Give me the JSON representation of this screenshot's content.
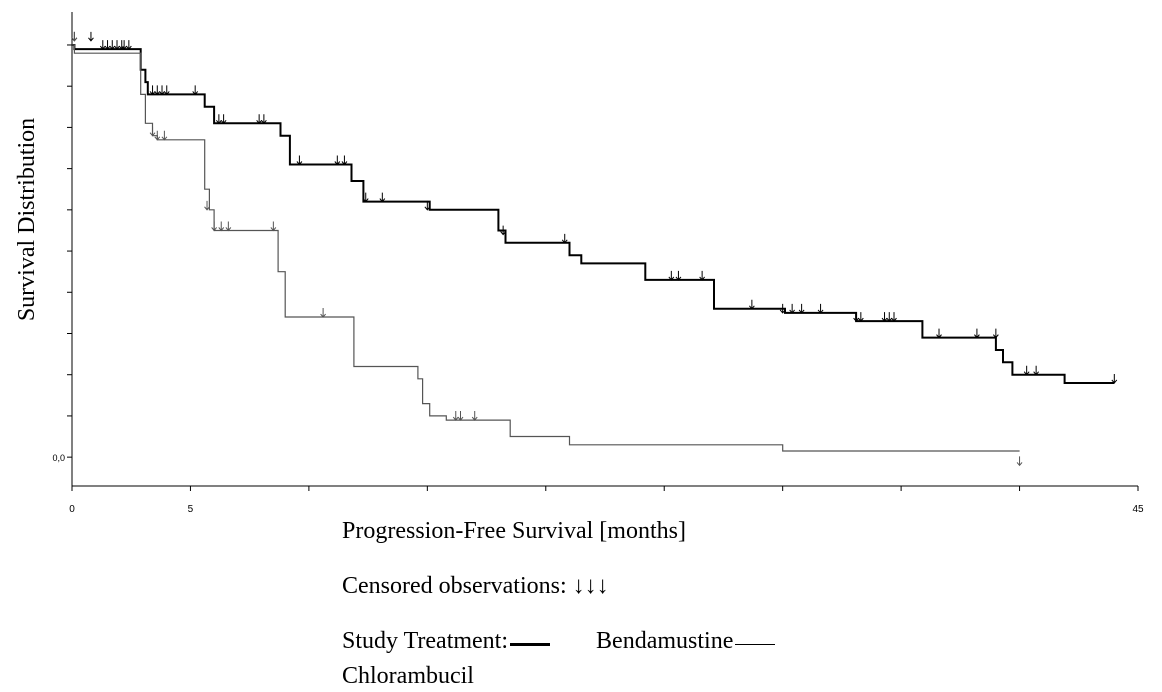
{
  "chart_data": {
    "type": "line",
    "subtype": "kaplan-meier step",
    "ylabel": "Survival Distribution",
    "xlabel": "Progression-Free Survival [months]",
    "xlim": [
      0,
      45
    ],
    "ylim": [
      -0.07,
      1.08
    ],
    "xticks": [
      0,
      5,
      10,
      15,
      20,
      25,
      30,
      35,
      40,
      45
    ],
    "xtick_labels": [
      "0",
      "5",
      "",
      "",
      "",
      "",
      "",
      "",
      "",
      "45"
    ],
    "yticks": [
      1.0,
      0.9,
      0.8,
      0.7,
      0.6,
      0.5,
      0.4,
      0.3,
      0.2,
      0.1,
      0.0
    ],
    "ytick_labels": [
      "",
      "",
      "",
      "",
      "",
      "",
      "",
      "",
      "",
      "",
      "0,0"
    ],
    "grid": false,
    "series": [
      {
        "name": "Bendamustine",
        "color": "#000000",
        "points": [
          [
            0,
            1.0
          ],
          [
            0.1,
            0.99
          ],
          [
            2.8,
            0.99
          ],
          [
            2.9,
            0.94
          ],
          [
            3.1,
            0.91
          ],
          [
            3.2,
            0.88
          ],
          [
            5.5,
            0.88
          ],
          [
            5.6,
            0.85
          ],
          [
            6.0,
            0.81
          ],
          [
            8.7,
            0.81
          ],
          [
            8.8,
            0.78
          ],
          [
            9.2,
            0.71
          ],
          [
            11.7,
            0.71
          ],
          [
            11.8,
            0.67
          ],
          [
            12.3,
            0.62
          ],
          [
            15.0,
            0.62
          ],
          [
            15.1,
            0.6
          ],
          [
            17.9,
            0.6
          ],
          [
            18.0,
            0.55
          ],
          [
            18.3,
            0.52
          ],
          [
            20.8,
            0.52
          ],
          [
            21.0,
            0.49
          ],
          [
            21.5,
            0.47
          ],
          [
            24.0,
            0.47
          ],
          [
            24.2,
            0.43
          ],
          [
            27.0,
            0.43
          ],
          [
            27.1,
            0.36
          ],
          [
            30.0,
            0.36
          ],
          [
            30.1,
            0.35
          ],
          [
            33.0,
            0.35
          ],
          [
            33.1,
            0.33
          ],
          [
            35.8,
            0.33
          ],
          [
            35.9,
            0.29
          ],
          [
            38.8,
            0.29
          ],
          [
            39.0,
            0.26
          ],
          [
            39.3,
            0.23
          ],
          [
            39.7,
            0.2
          ],
          [
            41.8,
            0.2
          ],
          [
            41.9,
            0.18
          ],
          [
            44.0,
            0.18
          ]
        ],
        "censored": [
          [
            0.1,
            1.01
          ],
          [
            0.8,
            1.01
          ],
          [
            1.3,
            0.99
          ],
          [
            1.5,
            0.99
          ],
          [
            1.7,
            0.99
          ],
          [
            1.9,
            0.99
          ],
          [
            2.1,
            0.99
          ],
          [
            2.2,
            0.99
          ],
          [
            2.4,
            0.99
          ],
          [
            3.4,
            0.88
          ],
          [
            3.6,
            0.88
          ],
          [
            3.8,
            0.88
          ],
          [
            4.0,
            0.88
          ],
          [
            5.2,
            0.88
          ],
          [
            6.2,
            0.81
          ],
          [
            6.4,
            0.81
          ],
          [
            7.9,
            0.81
          ],
          [
            8.1,
            0.81
          ],
          [
            9.6,
            0.71
          ],
          [
            11.2,
            0.71
          ],
          [
            11.5,
            0.71
          ],
          [
            12.4,
            0.62
          ],
          [
            13.1,
            0.62
          ],
          [
            15.0,
            0.6
          ],
          [
            18.2,
            0.54
          ],
          [
            20.8,
            0.52
          ],
          [
            25.3,
            0.43
          ],
          [
            25.6,
            0.43
          ],
          [
            26.6,
            0.43
          ],
          [
            28.7,
            0.36
          ],
          [
            30.0,
            0.35
          ],
          [
            30.4,
            0.35
          ],
          [
            30.8,
            0.35
          ],
          [
            31.6,
            0.35
          ],
          [
            33.1,
            0.33
          ],
          [
            33.3,
            0.33
          ],
          [
            34.3,
            0.33
          ],
          [
            34.5,
            0.33
          ],
          [
            34.7,
            0.33
          ],
          [
            36.6,
            0.29
          ],
          [
            38.2,
            0.29
          ],
          [
            39.0,
            0.29
          ],
          [
            40.3,
            0.2
          ],
          [
            40.7,
            0.2
          ],
          [
            44.0,
            0.18
          ]
        ]
      },
      {
        "name": "Chlorambucil",
        "color": "#555555",
        "points": [
          [
            0,
            1.0
          ],
          [
            0.1,
            0.98
          ],
          [
            2.8,
            0.98
          ],
          [
            2.9,
            0.88
          ],
          [
            3.1,
            0.81
          ],
          [
            3.4,
            0.78
          ],
          [
            3.6,
            0.77
          ],
          [
            5.4,
            0.77
          ],
          [
            5.6,
            0.65
          ],
          [
            5.8,
            0.6
          ],
          [
            6.0,
            0.55
          ],
          [
            8.5,
            0.55
          ],
          [
            8.7,
            0.45
          ],
          [
            9.0,
            0.34
          ],
          [
            11.7,
            0.34
          ],
          [
            11.9,
            0.22
          ],
          [
            14.3,
            0.22
          ],
          [
            14.6,
            0.19
          ],
          [
            14.8,
            0.13
          ],
          [
            15.1,
            0.1
          ],
          [
            15.8,
            0.09
          ],
          [
            18.3,
            0.09
          ],
          [
            18.5,
            0.05
          ],
          [
            20.8,
            0.05
          ],
          [
            21.0,
            0.03
          ],
          [
            29.8,
            0.03
          ],
          [
            30.0,
            0.015
          ],
          [
            40.0,
            0.015
          ]
        ],
        "censored": [
          [
            0.1,
            1.01
          ],
          [
            3.4,
            0.78
          ],
          [
            3.6,
            0.77
          ],
          [
            3.9,
            0.77
          ],
          [
            5.7,
            0.6
          ],
          [
            6.0,
            0.55
          ],
          [
            6.3,
            0.55
          ],
          [
            6.6,
            0.55
          ],
          [
            8.5,
            0.55
          ],
          [
            10.6,
            0.34
          ],
          [
            16.2,
            0.09
          ],
          [
            16.4,
            0.09
          ],
          [
            17.0,
            0.09
          ],
          [
            40.0,
            -0.02
          ]
        ]
      }
    ]
  },
  "captions": {
    "censored": "Censored observations: ↓↓↓",
    "treatment_prefix": "Study Treatment:",
    "bendamustine": "Bendamustine",
    "chlorambucil": "Chlorambucil"
  }
}
